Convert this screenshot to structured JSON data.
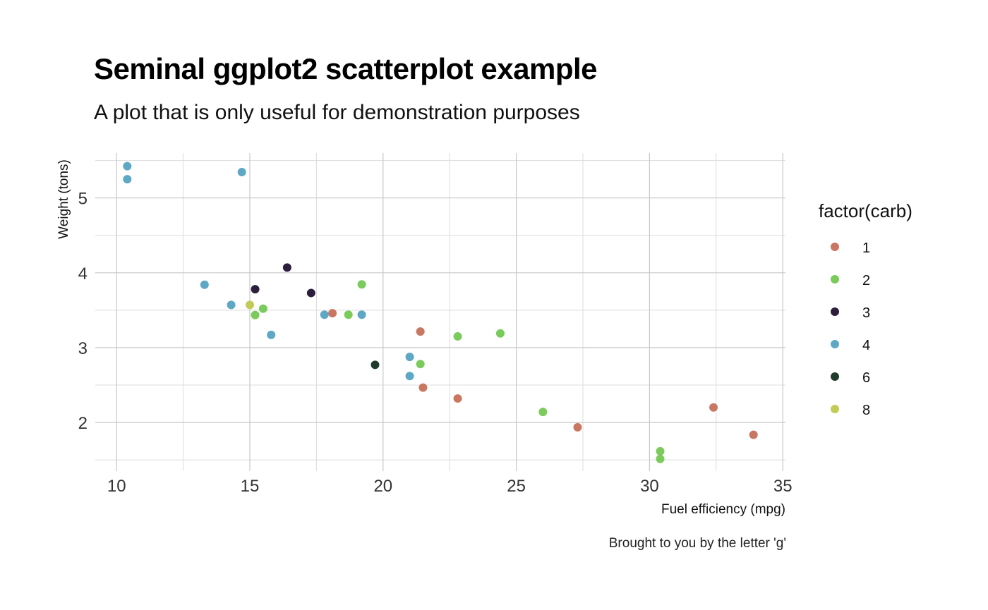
{
  "title": "Seminal ggplot2 scatterplot example",
  "subtitle": "A plot that is only useful for demonstration purposes",
  "caption": "Brought to you by the letter 'g'",
  "chart_data": {
    "type": "scatter",
    "xlabel": "Fuel efficiency (mpg)",
    "ylabel": "Weight (tons)",
    "xlim": [
      9.2,
      35.1
    ],
    "ylim": [
      1.35,
      5.6
    ],
    "x_ticks": [
      10,
      15,
      20,
      25,
      30,
      35
    ],
    "y_ticks": [
      2,
      3,
      4,
      5
    ],
    "x_minor": [
      12.5,
      17.5,
      22.5,
      27.5,
      32.5
    ],
    "y_minor": [
      1.5,
      2.5,
      3.5,
      4.5,
      5.5
    ],
    "grid": true,
    "legend": {
      "title": "factor(carb)",
      "placement": "right",
      "entries": [
        {
          "label": "1",
          "color": "#c97763"
        },
        {
          "label": "2",
          "color": "#7acb5b"
        },
        {
          "label": "3",
          "color": "#2b1f3d"
        },
        {
          "label": "4",
          "color": "#5ea8c5"
        },
        {
          "label": "6",
          "color": "#1f3b2b"
        },
        {
          "label": "8",
          "color": "#c2cb57"
        }
      ]
    },
    "series": [
      {
        "name": "1",
        "color": "#c97763",
        "points": [
          [
            18.1,
            3.46
          ],
          [
            21.4,
            3.215
          ],
          [
            21.5,
            2.465
          ],
          [
            22.8,
            2.32
          ],
          [
            27.3,
            1.935
          ],
          [
            32.4,
            2.2
          ],
          [
            33.9,
            1.835
          ]
        ]
      },
      {
        "name": "2",
        "color": "#7acb5b",
        "points": [
          [
            15.2,
            3.435
          ],
          [
            15.5,
            3.52
          ],
          [
            18.7,
            3.44
          ],
          [
            19.2,
            3.845
          ],
          [
            21.4,
            2.78
          ],
          [
            22.8,
            3.15
          ],
          [
            24.4,
            3.19
          ],
          [
            26.0,
            2.14
          ],
          [
            30.4,
            1.615
          ],
          [
            30.4,
            1.513
          ]
        ]
      },
      {
        "name": "3",
        "color": "#2b1f3d",
        "points": [
          [
            15.2,
            3.78
          ],
          [
            16.4,
            4.07
          ],
          [
            17.3,
            3.73
          ]
        ]
      },
      {
        "name": "4",
        "color": "#5ea8c5",
        "points": [
          [
            10.4,
            5.25
          ],
          [
            10.4,
            5.424
          ],
          [
            13.3,
            3.84
          ],
          [
            14.3,
            3.57
          ],
          [
            14.7,
            5.345
          ],
          [
            15.8,
            3.17
          ],
          [
            17.8,
            3.44
          ],
          [
            19.2,
            3.44
          ],
          [
            21.0,
            2.62
          ],
          [
            21.0,
            2.875
          ]
        ]
      },
      {
        "name": "6",
        "color": "#1f3b2b",
        "points": [
          [
            19.7,
            2.77
          ]
        ]
      },
      {
        "name": "8",
        "color": "#c2cb57",
        "points": [
          [
            15.0,
            3.57
          ]
        ]
      }
    ]
  }
}
